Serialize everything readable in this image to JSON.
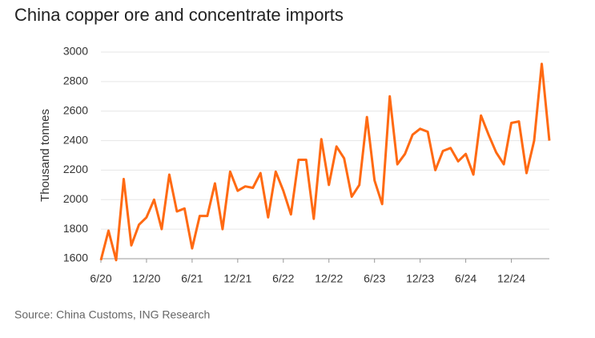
{
  "chart_data": {
    "type": "line",
    "title": "China copper ore and concentrate imports",
    "y_label": "Thousand tonnes",
    "source": "Source: China Customs, ING Research",
    "categories": [
      "6/20",
      null,
      null,
      null,
      null,
      null,
      "12/20",
      null,
      null,
      null,
      null,
      null,
      "6/21",
      null,
      null,
      null,
      null,
      null,
      "12/21",
      null,
      null,
      null,
      null,
      null,
      "6/22",
      null,
      null,
      null,
      null,
      null,
      "12/22",
      null,
      null,
      null,
      null,
      null,
      "6/23",
      null,
      null,
      null,
      null,
      null,
      "12/23",
      null,
      null,
      null,
      null,
      null,
      "6/24",
      null,
      null,
      null,
      null,
      null,
      "12/24",
      null,
      null,
      null,
      null,
      null
    ],
    "series": [
      {
        "name": "Imports",
        "color": "#ff6a13",
        "values": [
          1590,
          1790,
          1590,
          2140,
          1690,
          1830,
          1880,
          2000,
          1800,
          2170,
          1920,
          1940,
          1670,
          1890,
          1890,
          2110,
          1800,
          2190,
          2060,
          2090,
          2080,
          2180,
          1880,
          2190,
          2060,
          1900,
          2270,
          2270,
          1870,
          2410,
          2100,
          2360,
          2280,
          2020,
          2100,
          2560,
          2130,
          1970,
          2700,
          2240,
          2310,
          2440,
          2480,
          2460,
          2200,
          2330,
          2350,
          2260,
          2310,
          2170,
          2570,
          2440,
          2320,
          2240,
          2520,
          2530,
          2180,
          2400,
          2920,
          2400
        ]
      }
    ],
    "ylim": [
      1600,
      3000
    ],
    "yticks": [
      1600,
      1800,
      2000,
      2200,
      2400,
      2600,
      2800,
      3000
    ],
    "grid": true
  }
}
